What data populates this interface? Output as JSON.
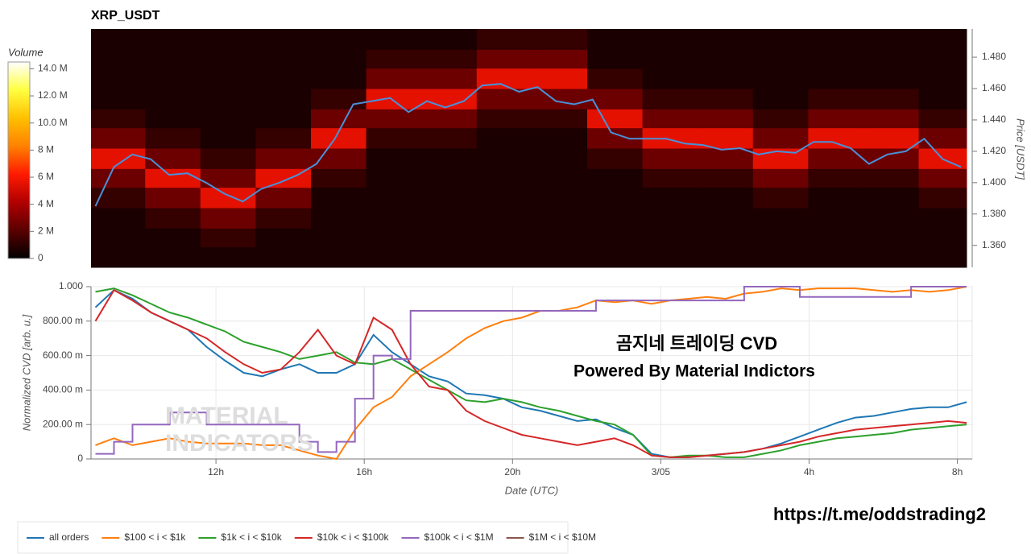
{
  "chart_data": [
    {
      "type": "heatmap",
      "title": "XRP_USDT",
      "y_label": "Price [USDT]",
      "xlim": [
        8.63,
        32.4
      ],
      "ylim": [
        1.346,
        1.498
      ],
      "yticks": [
        {
          "value": 1.36,
          "label": "1.360"
        },
        {
          "value": 1.38,
          "label": "1.380"
        },
        {
          "value": 1.4,
          "label": "1.400"
        },
        {
          "value": 1.42,
          "label": "1.420"
        },
        {
          "value": 1.44,
          "label": "1.440"
        },
        {
          "value": 1.46,
          "label": "1.460"
        },
        {
          "value": 1.48,
          "label": "1.480"
        }
      ],
      "x_bins": [
        8.63,
        10.1,
        11.6,
        13.1,
        14.6,
        16.1,
        17.6,
        19.1,
        20.6,
        22.1,
        23.6,
        25.1,
        26.6,
        28.1,
        29.6,
        31.1,
        32.4
      ],
      "y_bins": [
        1.346,
        1.359,
        1.371,
        1.384,
        1.397,
        1.409,
        1.422,
        1.435,
        1.447,
        1.46,
        1.473,
        1.485,
        1.498
      ],
      "values": [
        [
          600000,
          600000,
          600000,
          600000,
          600000,
          600000,
          600000,
          600000,
          600000,
          600000,
          600000,
          600000,
          600000,
          600000,
          600000,
          600000
        ],
        [
          600000,
          600000,
          1200000,
          600000,
          600000,
          600000,
          600000,
          600000,
          600000,
          600000,
          600000,
          600000,
          600000,
          600000,
          600000,
          600000
        ],
        [
          600000,
          1200000,
          2500000,
          1200000,
          600000,
          600000,
          600000,
          600000,
          600000,
          600000,
          600000,
          600000,
          600000,
          600000,
          600000,
          600000
        ],
        [
          1200000,
          2500000,
          5500000,
          2500000,
          600000,
          600000,
          600000,
          600000,
          600000,
          600000,
          600000,
          600000,
          1200000,
          600000,
          600000,
          1200000
        ],
        [
          2500000,
          5500000,
          2500000,
          5500000,
          1200000,
          600000,
          600000,
          600000,
          600000,
          600000,
          1200000,
          1200000,
          2500000,
          1200000,
          1200000,
          2500000
        ],
        [
          5500000,
          2500000,
          1200000,
          2500000,
          2500000,
          600000,
          600000,
          600000,
          600000,
          1200000,
          2500000,
          2500000,
          5500000,
          2500000,
          2500000,
          5500000
        ],
        [
          2500000,
          1200000,
          600000,
          1200000,
          5500000,
          1200000,
          1200000,
          600000,
          600000,
          2500000,
          5500000,
          5500000,
          2500000,
          5500000,
          5500000,
          2500000
        ],
        [
          1200000,
          600000,
          600000,
          600000,
          2500000,
          2500000,
          2500000,
          1200000,
          1200000,
          5500000,
          2500000,
          2500000,
          1200000,
          2500000,
          2500000,
          1200000
        ],
        [
          600000,
          600000,
          600000,
          600000,
          1200000,
          5500000,
          5500000,
          2500000,
          2500000,
          2500000,
          1200000,
          1200000,
          600000,
          1200000,
          1200000,
          600000
        ],
        [
          600000,
          600000,
          600000,
          600000,
          600000,
          2500000,
          2500000,
          5500000,
          5500000,
          1200000,
          600000,
          600000,
          600000,
          600000,
          600000,
          600000
        ],
        [
          600000,
          600000,
          600000,
          600000,
          600000,
          1200000,
          1200000,
          2500000,
          2500000,
          600000,
          600000,
          600000,
          600000,
          600000,
          600000,
          600000
        ],
        [
          600000,
          600000,
          600000,
          600000,
          600000,
          600000,
          600000,
          1200000,
          1200000,
          600000,
          600000,
          600000,
          600000,
          600000,
          600000,
          600000
        ]
      ],
      "colorbar": {
        "title": "Volume",
        "lim": [
          0,
          14500000
        ],
        "ticks": [
          0,
          {
            "value": 2000000,
            "label": "2 M"
          },
          {
            "value": 4000000,
            "label": "4 M"
          },
          {
            "value": 6000000,
            "label": "6 M"
          },
          {
            "value": 8000000,
            "label": "8 M"
          },
          {
            "value": 10000000,
            "label": "10.0 M"
          },
          {
            "value": 12000000,
            "label": "12.0 M"
          },
          {
            "value": 14000000,
            "label": "14.0 M"
          }
        ],
        "colors": [
          "#000000",
          "#5a0000",
          "#b00000",
          "#ff1a00",
          "#ff8000",
          "#ffc000",
          "#ffff40",
          "#ffffff"
        ]
      },
      "x": [
        8.75,
        9.25,
        9.75,
        10.25,
        10.75,
        11.25,
        11.75,
        12.25,
        12.75,
        13.25,
        13.75,
        14.25,
        14.75,
        15.25,
        15.75,
        16.25,
        16.75,
        17.25,
        17.75,
        18.25,
        18.75,
        19.25,
        19.75,
        20.25,
        20.75,
        21.25,
        21.75,
        22.25,
        22.75,
        23.25,
        23.75,
        24.25,
        24.75,
        25.25,
        25.75,
        26.25,
        26.75,
        27.25,
        27.75,
        28.25,
        28.75,
        29.25,
        29.75,
        30.25,
        30.75,
        31.25,
        31.75,
        32.25
      ],
      "price": {
        "color": "#4a90d9",
        "values": [
          1.385,
          1.41,
          1.418,
          1.415,
          1.405,
          1.406,
          1.4,
          1.393,
          1.388,
          1.396,
          1.4,
          1.405,
          1.412,
          1.428,
          1.45,
          1.452,
          1.454,
          1.445,
          1.452,
          1.448,
          1.452,
          1.462,
          1.463,
          1.458,
          1.461,
          1.452,
          1.45,
          1.453,
          1.432,
          1.428,
          1.428,
          1.428,
          1.425,
          1.424,
          1.421,
          1.422,
          1.418,
          1.42,
          1.419,
          1.426,
          1.426,
          1.422,
          1.412,
          1.418,
          1.42,
          1.428,
          1.415,
          1.41
        ]
      }
    },
    {
      "type": "line",
      "x_label": "Date (UTC)",
      "y_label": "Normalized CVD [arb. u.]",
      "x": [
        8.75,
        9.25,
        9.75,
        10.25,
        10.75,
        11.25,
        11.75,
        12.25,
        12.75,
        13.25,
        13.75,
        14.25,
        14.75,
        15.25,
        15.75,
        16.25,
        16.75,
        17.25,
        17.75,
        18.25,
        18.75,
        19.25,
        19.75,
        20.25,
        20.75,
        21.25,
        21.75,
        22.25,
        22.75,
        23.25,
        23.75,
        24.25,
        24.75,
        25.25,
        25.75,
        26.25,
        26.75,
        27.25,
        27.75,
        28.25,
        28.75,
        29.25,
        29.75,
        30.25,
        30.75,
        31.25,
        31.75,
        32.25
      ],
      "xlim": [
        8.63,
        32.4
      ],
      "xticks": [
        {
          "value": 12,
          "label": "12h"
        },
        {
          "value": 16,
          "label": "16h"
        },
        {
          "value": 20,
          "label": "20h"
        },
        {
          "value": 24,
          "label": "3/05"
        },
        {
          "value": 28,
          "label": "4h"
        },
        {
          "value": 32,
          "label": "8h"
        }
      ],
      "ylim": [
        0,
        1
      ],
      "yticks": [
        0,
        {
          "value": 0.2,
          "label": "200.00 m"
        },
        {
          "value": 0.4,
          "label": "400.00 m"
        },
        {
          "value": 0.6,
          "label": "600.00 m"
        },
        {
          "value": 0.8,
          "label": "800.00 m"
        },
        {
          "value": 1,
          "label": "1.000"
        }
      ],
      "grid": true,
      "legend": "bottom-left",
      "series": [
        {
          "name": "all orders",
          "color": "#1f77b4",
          "values": [
            0.88,
            0.98,
            0.93,
            0.85,
            0.8,
            0.75,
            0.65,
            0.57,
            0.5,
            0.48,
            0.52,
            0.55,
            0.5,
            0.5,
            0.55,
            0.72,
            0.62,
            0.55,
            0.48,
            0.45,
            0.38,
            0.37,
            0.35,
            0.3,
            0.28,
            0.25,
            0.22,
            0.23,
            0.18,
            0.14,
            0.03,
            0.01,
            0.01,
            0.02,
            0.03,
            0.04,
            0.06,
            0.09,
            0.13,
            0.17,
            0.21,
            0.24,
            0.25,
            0.27,
            0.29,
            0.3,
            0.3,
            0.33
          ]
        },
        {
          "name": "$100 < i < $1k",
          "color": "#ff7f0e",
          "values": [
            0.08,
            0.12,
            0.08,
            0.1,
            0.12,
            0.1,
            0.09,
            0.09,
            0.09,
            0.08,
            0.08,
            0.05,
            0.02,
            0,
            0.17,
            0.3,
            0.36,
            0.48,
            0.55,
            0.62,
            0.7,
            0.76,
            0.8,
            0.82,
            0.86,
            0.86,
            0.88,
            0.92,
            0.91,
            0.92,
            0.9,
            0.92,
            0.93,
            0.94,
            0.93,
            0.96,
            0.97,
            0.99,
            0.98,
            0.99,
            0.99,
            0.99,
            0.98,
            0.97,
            0.98,
            0.97,
            0.98,
            1
          ]
        },
        {
          "name": "$1k < i < $10k",
          "color": "#2ca02c",
          "values": [
            0.97,
            0.99,
            0.95,
            0.9,
            0.85,
            0.82,
            0.78,
            0.74,
            0.68,
            0.65,
            0.62,
            0.58,
            0.6,
            0.62,
            0.56,
            0.55,
            0.58,
            0.52,
            0.46,
            0.4,
            0.34,
            0.33,
            0.35,
            0.33,
            0.3,
            0.28,
            0.25,
            0.22,
            0.2,
            0.14,
            0.02,
            0.01,
            0.02,
            0.02,
            0.01,
            0.01,
            0.03,
            0.05,
            0.08,
            0.1,
            0.12,
            0.13,
            0.14,
            0.15,
            0.17,
            0.18,
            0.19,
            0.2
          ]
        },
        {
          "name": "$10k < i < $100k",
          "color": "#d62728",
          "values": [
            0.8,
            0.98,
            0.92,
            0.85,
            0.8,
            0.75,
            0.7,
            0.62,
            0.55,
            0.5,
            0.52,
            0.62,
            0.75,
            0.6,
            0.55,
            0.82,
            0.75,
            0.55,
            0.42,
            0.4,
            0.28,
            0.22,
            0.18,
            0.14,
            0.12,
            0.1,
            0.08,
            0.1,
            0.12,
            0.08,
            0.02,
            0.01,
            0.01,
            0.02,
            0.03,
            0.04,
            0.06,
            0.08,
            0.1,
            0.13,
            0.15,
            0.17,
            0.18,
            0.19,
            0.2,
            0.21,
            0.22,
            0.21
          ]
        },
        {
          "name": "$100k < i < $1M",
          "color": "#9467bd",
          "step": "after",
          "values": [
            0.03,
            0.1,
            0.2,
            0.2,
            0.27,
            0.27,
            0.2,
            0.2,
            0.2,
            0.2,
            0.2,
            0.1,
            0.04,
            0.1,
            0.35,
            0.6,
            0.58,
            0.86,
            0.86,
            0.86,
            0.86,
            0.86,
            0.86,
            0.86,
            0.86,
            0.86,
            0.86,
            0.92,
            0.92,
            0.92,
            0.92,
            0.92,
            0.92,
            0.92,
            0.92,
            1,
            1,
            1,
            0.94,
            0.94,
            0.94,
            0.94,
            0.94,
            0.94,
            1,
            1,
            1,
            1
          ]
        },
        {
          "name": "$1M < i < $10M",
          "color": "#8c564b",
          "values": [
            null,
            null,
            null,
            null,
            null,
            null,
            null,
            null,
            null,
            null,
            null,
            null,
            null,
            null,
            null,
            null,
            null,
            null,
            null,
            null,
            null,
            null,
            null,
            null,
            null,
            null,
            null,
            null,
            null,
            null,
            null,
            null,
            null,
            null,
            null,
            null,
            null,
            null,
            null,
            null,
            null,
            null,
            null,
            null,
            null,
            null,
            null,
            null
          ]
        }
      ],
      "annotations": [
        "곰지네 트레이딩 CVD",
        "Powered By Material Indictors"
      ],
      "watermark": [
        "MATERIAL",
        "INDICATORS"
      ]
    }
  ],
  "link": "https://t.me/oddstrading2"
}
